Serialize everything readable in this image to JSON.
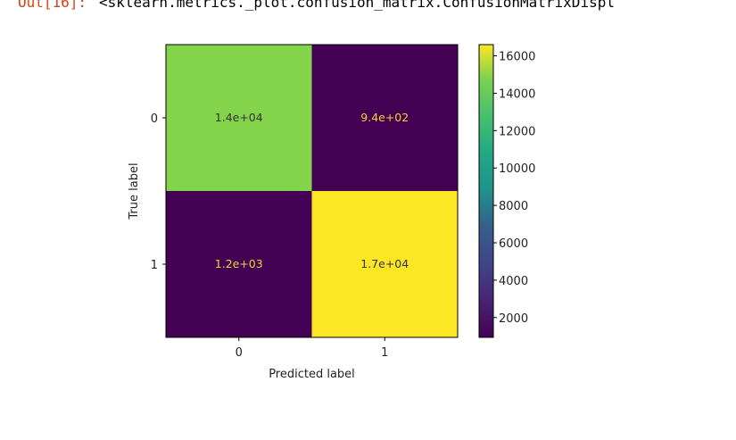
{
  "output": {
    "prompt": "Out[16]:",
    "repr": "<sklearn.metrics._plot.confusion_matrix.ConfusionMatrixDispl"
  },
  "chart_data": {
    "type": "heatmap",
    "xlabel": "Predicted label",
    "ylabel": "True label",
    "x_ticks": [
      "0",
      "1"
    ],
    "y_ticks": [
      "0",
      "1"
    ],
    "values": [
      [
        14000,
        940
      ],
      [
        1200,
        17000
      ]
    ],
    "cell_labels": [
      [
        "1.4e+04",
        "9.4e+02"
      ],
      [
        "1.2e+03",
        "1.7e+04"
      ]
    ],
    "cell_label_colors": [
      [
        "#333333",
        "#f5d13a"
      ],
      [
        "#f5d13a",
        "#333333"
      ]
    ],
    "colormap": "viridis",
    "cell_colors": [
      [
        "#84d44b",
        "#440154"
      ],
      [
        "#440154",
        "#fde725"
      ]
    ],
    "colorbar": {
      "range": [
        940,
        16600
      ],
      "ticks": [
        2000,
        4000,
        6000,
        8000,
        10000,
        12000,
        14000,
        16000
      ],
      "tick_labels": [
        "2000",
        "4000",
        "6000",
        "8000",
        "10000",
        "12000",
        "14000",
        "16000"
      ]
    }
  }
}
